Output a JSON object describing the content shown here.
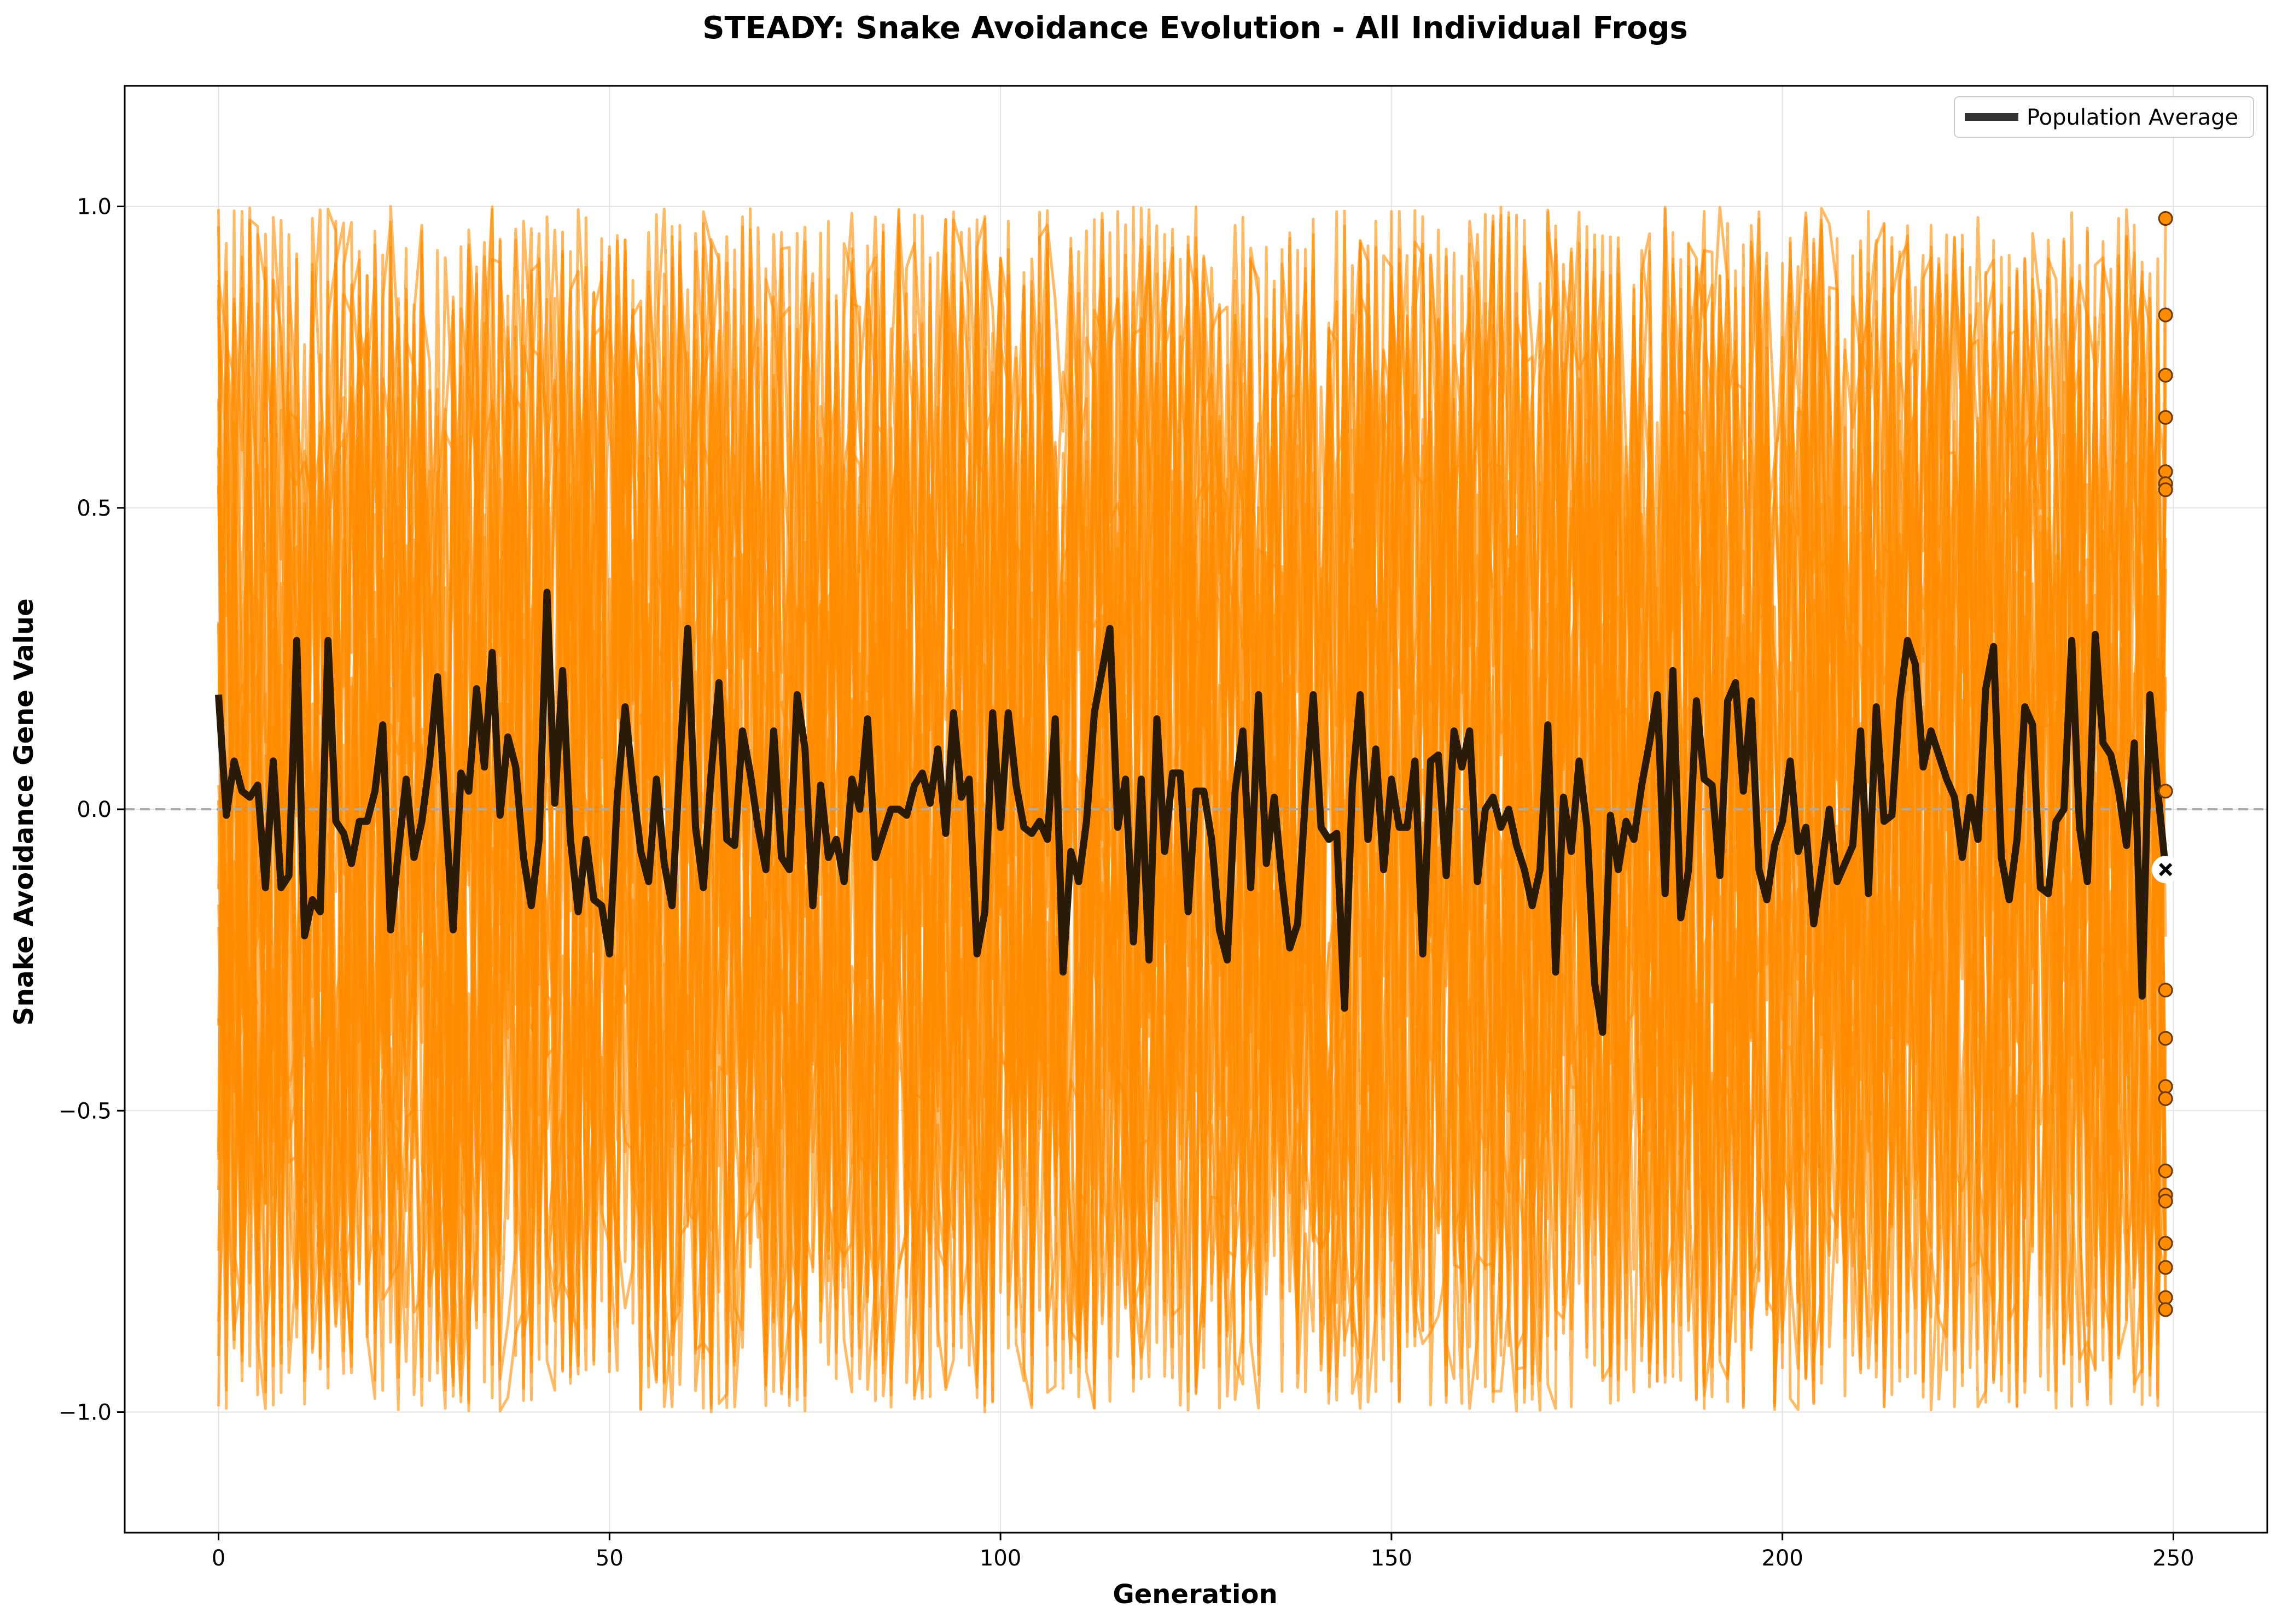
{
  "chart_data": {
    "type": "line",
    "title": "STEADY: Snake Avoidance Evolution - All Individual Frogs",
    "xlabel": "Generation",
    "ylabel": "Snake Avoidance Gene Value",
    "xlim": [
      -12,
      262
    ],
    "ylim": [
      -1.2,
      1.2
    ],
    "xticks": [
      0,
      50,
      100,
      150,
      200,
      250
    ],
    "yticks": [
      -1.0,
      -0.5,
      0.0,
      0.5,
      1.0
    ],
    "xtick_labels": [
      "0",
      "50",
      "100",
      "150",
      "200",
      "250"
    ],
    "ytick_labels": [
      "−1.0",
      "−0.5",
      "0.0",
      "0.5",
      "1.0"
    ],
    "grid": true,
    "reference_line": {
      "y": 0.0,
      "style": "dashed",
      "color": "#aaaaaa"
    },
    "individual_color": "#ff8c00",
    "average_color": "#2a1a08",
    "legend": {
      "position": "top-right",
      "entries": [
        "Population Average"
      ]
    },
    "individuals_note_count": 30,
    "final_generation": 249,
    "final_individual_values": [
      0.98,
      0.82,
      0.72,
      0.65,
      0.56,
      0.54,
      0.53,
      0.03,
      -0.3,
      -0.38,
      -0.46,
      -0.48,
      -0.6,
      -0.64,
      -0.65,
      -0.72,
      -0.76,
      -0.81,
      -0.83
    ],
    "series": [
      {
        "name": "Population Average",
        "color": "#2a1a08",
        "x_start": 0,
        "x_step": 1,
        "values": [
          0.19,
          -0.01,
          0.08,
          0.03,
          0.02,
          0.04,
          -0.13,
          0.08,
          -0.13,
          -0.11,
          0.28,
          -0.21,
          -0.15,
          -0.17,
          0.28,
          -0.02,
          -0.04,
          -0.09,
          -0.02,
          -0.02,
          0.03,
          0.14,
          -0.2,
          -0.07,
          0.05,
          -0.08,
          -0.02,
          0.08,
          0.22,
          0.0,
          -0.2,
          0.06,
          0.03,
          0.2,
          0.07,
          0.26,
          -0.01,
          0.12,
          0.07,
          -0.08,
          -0.16,
          -0.05,
          0.36,
          0.01,
          0.23,
          -0.05,
          -0.17,
          -0.05,
          -0.15,
          -0.16,
          -0.24,
          0.02,
          0.17,
          0.04,
          -0.07,
          -0.12,
          0.05,
          -0.09,
          -0.16,
          0.08,
          0.3,
          -0.03,
          -0.13,
          0.06,
          0.21,
          -0.05,
          -0.06,
          0.13,
          0.06,
          -0.03,
          -0.1,
          0.13,
          -0.08,
          -0.1,
          0.19,
          0.1,
          -0.16,
          0.04,
          -0.08,
          -0.05,
          -0.12,
          0.05,
          0.0,
          0.15,
          -0.08,
          -0.04,
          0.0,
          0.0,
          -0.01,
          0.04,
          0.06,
          0.01,
          0.1,
          -0.04,
          0.16,
          0.02,
          0.05,
          -0.24,
          -0.17,
          0.16,
          -0.03,
          0.16,
          0.04,
          -0.03,
          -0.04,
          -0.02,
          -0.05,
          0.15,
          -0.27,
          -0.07,
          -0.12,
          -0.02,
          0.16,
          0.23,
          0.3,
          -0.03,
          0.05,
          -0.22,
          0.05,
          -0.25,
          0.15,
          -0.07,
          0.06,
          0.06,
          -0.17,
          0.03,
          0.03,
          -0.05,
          -0.2,
          -0.25,
          0.03,
          0.13,
          -0.13,
          0.19,
          -0.09,
          0.02,
          -0.12,
          -0.23,
          -0.19,
          0.02,
          0.19,
          -0.03,
          -0.05,
          -0.04,
          -0.33,
          0.04,
          0.19,
          -0.05,
          0.1,
          -0.1,
          0.05,
          -0.03,
          -0.03,
          0.08,
          -0.24,
          0.08,
          0.09,
          -0.11,
          0.13,
          0.07,
          0.13,
          -0.12,
          0.0,
          0.02,
          -0.03,
          0.0,
          -0.06,
          -0.1,
          -0.16,
          -0.1,
          0.14,
          -0.27,
          0.02,
          -0.07,
          0.08,
          -0.03,
          -0.29,
          -0.37,
          -0.01,
          -0.1,
          -0.02,
          -0.05,
          0.04,
          0.11,
          0.19,
          -0.14,
          0.23,
          -0.18,
          -0.1,
          0.18,
          0.05,
          0.04,
          -0.11,
          0.18,
          0.21,
          0.03,
          0.18,
          -0.1,
          -0.15,
          -0.06,
          -0.02,
          0.08,
          -0.07,
          -0.03,
          -0.19,
          -0.1,
          0.0,
          -0.12,
          -0.09,
          -0.06,
          0.13,
          -0.14,
          0.17,
          -0.02,
          -0.01,
          0.18,
          0.28,
          0.24,
          0.07,
          0.13,
          0.09,
          0.05,
          0.02,
          -0.08,
          0.02,
          -0.05,
          0.2,
          0.27,
          -0.08,
          -0.15,
          -0.05,
          0.17,
          0.14,
          -0.13,
          -0.14,
          -0.02,
          0.0,
          0.28,
          -0.03,
          -0.12,
          0.29,
          0.11,
          0.09,
          0.03,
          -0.06,
          0.11,
          -0.31,
          0.19,
          0.03,
          -0.1
        ]
      }
    ]
  }
}
